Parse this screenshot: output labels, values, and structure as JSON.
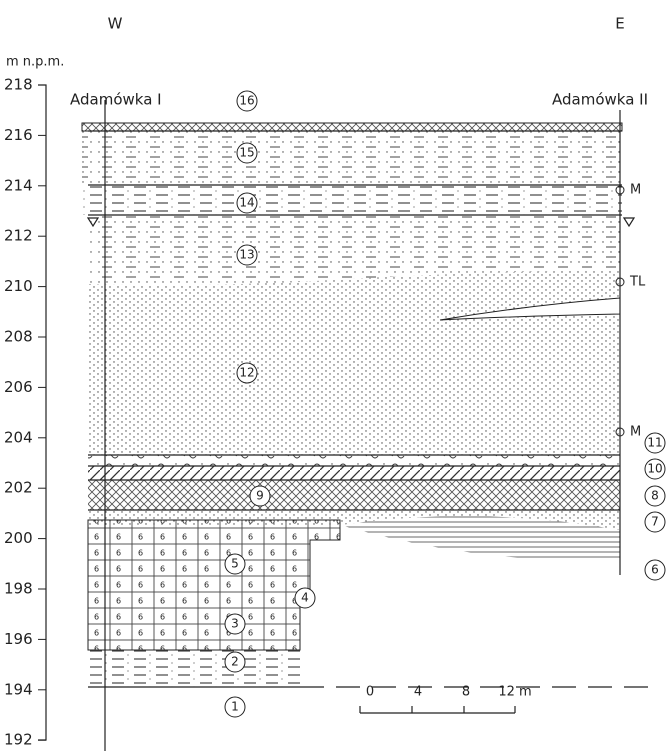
{
  "header": {
    "west": "W",
    "east": "E"
  },
  "axis": {
    "label": "m n.p.m.",
    "ticks": [
      218,
      216,
      214,
      212,
      210,
      208,
      206,
      204,
      202,
      200,
      198,
      196,
      194,
      192
    ]
  },
  "wells": [
    "Adamówka I",
    "Adamówka II"
  ],
  "layers": [
    1,
    2,
    3,
    4,
    5,
    6,
    7,
    8,
    9,
    10,
    11,
    12,
    13,
    14,
    15,
    16
  ],
  "markers": [
    "M",
    "TL",
    "M"
  ],
  "scale": {
    "ticks": [
      0,
      4,
      8,
      "12 m"
    ]
  }
}
